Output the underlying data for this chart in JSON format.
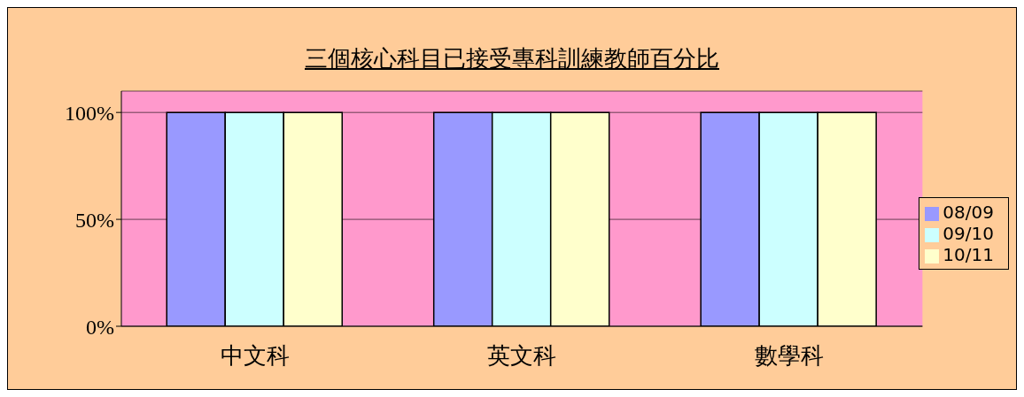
{
  "chart_data": {
    "type": "bar",
    "title": "三個核心科目已接受專科訓練教師百分比",
    "categories": [
      "中文科",
      "英文科",
      "數學科"
    ],
    "series": [
      {
        "name": "08/09",
        "color": "#9999ff",
        "values": [
          100,
          100,
          100
        ]
      },
      {
        "name": "09/10",
        "color": "#ccffff",
        "values": [
          100,
          100,
          100
        ]
      },
      {
        "name": "10/11",
        "color": "#ffffcc",
        "values": [
          100,
          100,
          100
        ]
      }
    ],
    "ylim": [
      0,
      110
    ],
    "yticks": [
      {
        "value": 0,
        "label": "0%"
      },
      {
        "value": 50,
        "label": "50%"
      },
      {
        "value": 100,
        "label": "100%"
      }
    ],
    "grid": "y",
    "legend": "right"
  }
}
